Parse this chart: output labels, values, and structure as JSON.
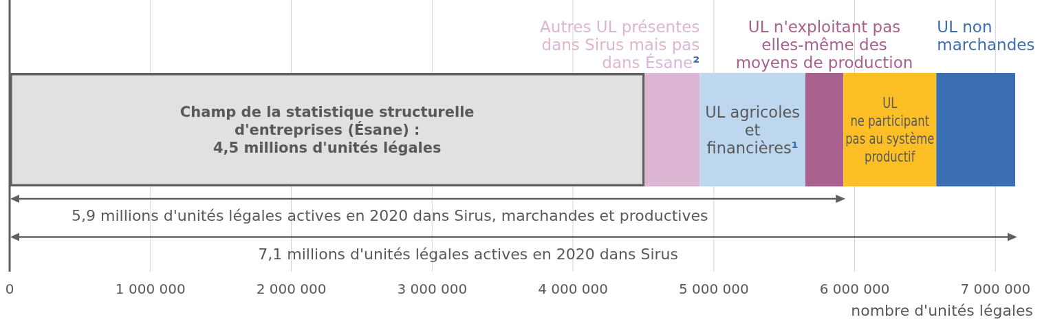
{
  "chart_data": {
    "type": "bar",
    "orientation": "horizontal",
    "stacked": true,
    "categories": [
      null
    ],
    "series": [
      {
        "name": "Champ de la statistique structurelle\nd'entreprises (Ésane) :\n4,5 millions d'unités légales",
        "color": "#e0e2df",
        "values": [
          4510000
        ]
      },
      {
        "name": "Autres UL présentes\ndans Sirus mais pas\ndans Ésane²",
        "color": "#dcb6d2",
        "values": [
          390000
        ]
      },
      {
        "name": "UL agricoles\net\nfinancières¹",
        "color": "#bdd7ef",
        "values": [
          750000
        ]
      },
      {
        "name": "UL n'exploitant pas\nelles-même des\nmoyens de production",
        "color": "#a8608f",
        "values": [
          270000
        ]
      },
      {
        "name": "UL\nne participant\npas au système\nproductif",
        "color": "#fcbf26",
        "values": [
          660000
        ]
      },
      {
        "name": "UL non\nmarchandes",
        "color": "#3b6db3",
        "values": [
          560000
        ]
      }
    ],
    "xlim": [
      0,
      7140000
    ],
    "xticks": [
      0,
      {
        "value": 1000000,
        "label": "1 000 000"
      },
      {
        "value": 2000000,
        "label": "2 000 000"
      },
      {
        "value": 3000000,
        "label": "3 000 000"
      },
      {
        "value": 4000000,
        "label": "4 000 000"
      },
      {
        "value": 5000000,
        "label": "5 000 000"
      },
      {
        "value": 6000000,
        "label": "6 000 000"
      },
      {
        "value": 7000000,
        "label": "7 000 000"
      }
    ],
    "xlabel": "nombre d'unités légales",
    "grid": "x",
    "annotations": [
      "5,9 millions d'unités légales actives en 2020 dans Sirus, marchandes et productives",
      "7,1 millions d'unités légales actives en 2020 dans Sirus"
    ]
  }
}
